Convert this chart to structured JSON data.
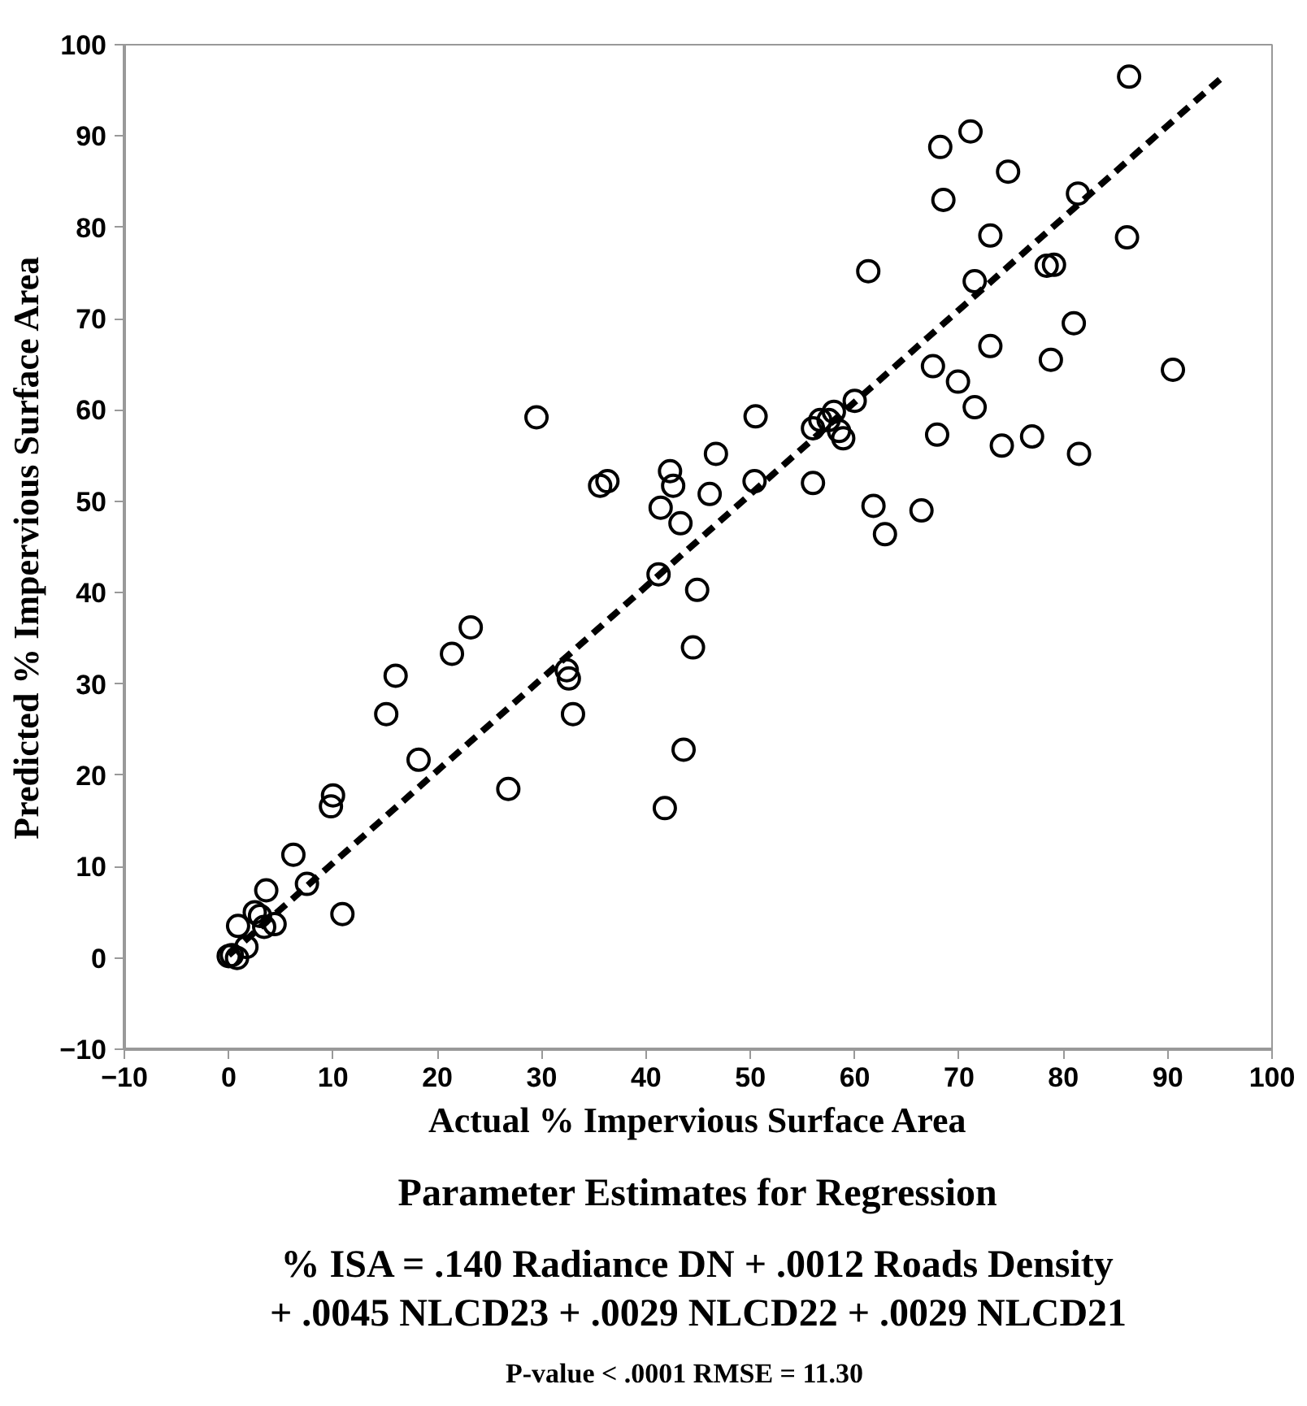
{
  "chart_data": {
    "type": "scatter",
    "xlabel": "Actual % Impervious Surface Area",
    "ylabel": "Predicted % Impervious Surface Area",
    "annotations": [
      "Parameter Estimates for Regression",
      "% ISA = .140 Radiance DN + .0012 Roads Density",
      "+ .0045 NLCD23 + .0029 NLCD22 + .0029 NLCD21",
      "P-value < .0001     RMSE = 11.30"
    ],
    "xlim": [
      -10,
      100
    ],
    "ylim": [
      -10,
      100
    ],
    "xticks": [
      -10,
      0,
      10,
      20,
      30,
      40,
      50,
      60,
      70,
      80,
      90,
      100
    ],
    "yticks": [
      -10,
      0,
      10,
      20,
      30,
      40,
      50,
      60,
      70,
      80,
      90,
      100
    ],
    "grid": false,
    "series": [
      {
        "marker": "circle",
        "color": "#000000",
        "x": [
          86.3,
          71.1,
          68.2,
          74.7,
          81.4,
          68.5,
          73.0,
          86.1,
          78.4,
          79.1,
          61.3,
          71.5,
          81.0,
          73.0,
          78.8,
          90.5,
          67.5,
          69.9,
          71.5,
          60.0,
          58.0,
          56.7,
          57.5,
          56.0,
          58.5,
          58.9,
          50.5,
          46.7,
          46.1,
          50.4,
          56.0,
          67.9,
          74.1,
          77.0,
          81.5,
          61.8,
          66.4,
          62.9,
          43.3,
          29.5,
          35.6,
          36.3,
          42.3,
          42.6,
          41.4,
          41.2,
          44.9,
          44.5,
          43.6,
          41.8,
          23.2,
          21.4,
          16.0,
          15.1,
          18.2,
          32.4,
          32.6,
          33.0,
          26.8,
          10.0,
          9.8,
          6.2,
          7.5,
          3.6,
          10.9,
          0.9,
          2.5,
          3.0,
          3.4,
          4.4,
          1.7,
          0.0,
          0.8,
          0.3
        ],
        "values": [
          96.5,
          90.5,
          88.8,
          86.1,
          83.7,
          83.0,
          79.1,
          78.9,
          75.8,
          75.9,
          75.2,
          74.1,
          69.5,
          67.0,
          65.5,
          64.4,
          64.8,
          63.1,
          60.3,
          61.0,
          59.8,
          58.9,
          58.9,
          58.0,
          57.7,
          56.9,
          59.3,
          55.2,
          50.8,
          52.2,
          52.0,
          57.3,
          56.1,
          57.1,
          55.2,
          49.5,
          49.0,
          46.4,
          47.6,
          59.2,
          51.7,
          52.2,
          53.3,
          51.7,
          49.3,
          42.0,
          40.3,
          34.0,
          22.8,
          16.4,
          36.2,
          33.3,
          30.9,
          26.7,
          21.7,
          31.5,
          30.6,
          26.7,
          18.5,
          17.8,
          16.6,
          11.3,
          8.1,
          7.4,
          4.8,
          3.5,
          5.0,
          4.6,
          3.4,
          3.7,
          1.2,
          0.2,
          0.0,
          0.3
        ]
      },
      {
        "type": "line",
        "line_style": "dashed",
        "color": "#000000",
        "x": [
          0,
          95
        ],
        "values": [
          0.3,
          96.2
        ]
      }
    ]
  }
}
